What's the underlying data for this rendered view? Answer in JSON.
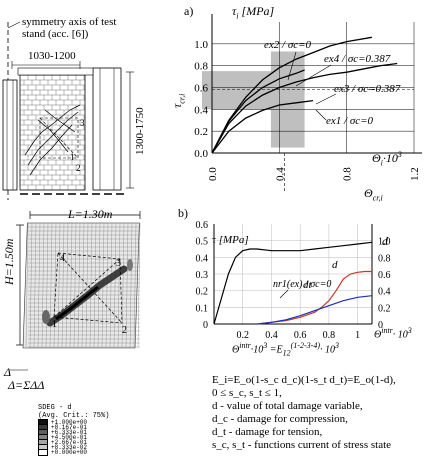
{
  "left_top": {
    "symmetry_label_1": "symmetry axis of test",
    "symmetry_label_2": "stand (acc. [6])",
    "width_dim": "1030-1200",
    "height_dim": "1300-1750",
    "crack_labels": [
      "1",
      "2",
      "3"
    ]
  },
  "left_bottom": {
    "length_label": "L=1.30m",
    "height_label": "H=1.50m",
    "node_labels": [
      "1",
      "2",
      "3",
      "4"
    ],
    "delta_label": "Δ",
    "delta_sum": "Δ=ΣΔΔ",
    "legend": {
      "title": "SDEG - d",
      "subtitle": "(Avg. Crit.: 75%)",
      "values": [
        "+1.000e+00",
        "+8.167e-01",
        "+6.333e-01",
        "+4.500e-01",
        "+2.667e-01",
        "+8.333e-02",
        "+0.000e+00"
      ],
      "colors": [
        "#111111",
        "#3a3a3a",
        "#5e5e5e",
        "#828282",
        "#a6a6a6",
        "#cacaca",
        "#ffffff"
      ]
    }
  },
  "chart_a": {
    "panel_label": "a)",
    "y_label": "τ",
    "y_subscript": "i",
    "y_unit": "[MPa]",
    "tau_cr": "τ",
    "tau_cr_sub": "cr,i",
    "x_label": "Θ",
    "x_subscript": "i",
    "x_unit": "·10",
    "x_power": "3",
    "theta_cr": "Θ",
    "theta_cr_sub": "cr,i"
  },
  "chart_b": {
    "panel_label": "b)",
    "y_label": "τ",
    "y_unit": "[MPa]",
    "y2_label": "d",
    "x_label_line1": "Θ",
    "x_label_line1_sup": "intr",
    "x_label_line1_rest": "· 10",
    "x_label_line1_power": "3",
    "x_label_line2": "Θ",
    "x_label_line2_sup": "intr",
    "x_label_line2_rest": "·10",
    "x_label_line2_power": "3",
    "x_label_line2_eq": "=E",
    "x_label_line2_e_sub": "12",
    "x_label_line2_e_sup": "(1-2-3-4)",
    "x_label_line2_tail": "· 10",
    "x_label_line2_tail_power": "3"
  },
  "formula": {
    "line1": "E_i=E_o(1-s_c d_c)(1-s_t d_t)=E_o(1-d),",
    "line2": "0 ≤ s_c, s_t ≤ 1,",
    "line3": "d - value of total damage variable,",
    "line4": "d_c - damage for compression,",
    "line5": "d_t - damage for tension,",
    "line6": "s_c, s_t - functions current of stress state"
  },
  "chart_data": [
    {
      "type": "line",
      "title": "",
      "xlabel": "Θi·10^3",
      "ylabel": "τi [MPa]",
      "xlim": [
        0,
        1.2
      ],
      "ylim": [
        0,
        1.2
      ],
      "x_ticks": [
        "0.0",
        "0.4",
        "0.8",
        "1.2"
      ],
      "y_ticks": [
        "0.0",
        "0.2",
        "0.4",
        "0.6",
        "0.8",
        "1.0"
      ],
      "grid": true,
      "series": [
        {
          "name": "ex4 / σc=0.387",
          "x": [
            0.0,
            0.1,
            0.2,
            0.3,
            0.4,
            0.5,
            0.6,
            0.7,
            0.8,
            0.95
          ],
          "values": [
            0.0,
            0.3,
            0.51,
            0.67,
            0.78,
            0.86,
            0.92,
            0.98,
            1.02,
            1.06
          ]
        },
        {
          "name": "ex2 / σc=0",
          "x": [
            0.0,
            0.1,
            0.2,
            0.3,
            0.4,
            0.5,
            0.55
          ],
          "values": [
            0.0,
            0.29,
            0.48,
            0.6,
            0.68,
            0.73,
            0.76
          ]
        },
        {
          "name": "ex3 / σc=0.387",
          "x": [
            0.0,
            0.1,
            0.2,
            0.3,
            0.4,
            0.5,
            0.6,
            0.7,
            0.8,
            1.0,
            1.1
          ],
          "values": [
            0.0,
            0.27,
            0.43,
            0.53,
            0.6,
            0.65,
            0.69,
            0.72,
            0.74,
            0.8,
            0.82
          ]
        },
        {
          "name": "ex1 / σc=0",
          "x": [
            0.0,
            0.1,
            0.2,
            0.3,
            0.4,
            0.5,
            0.6
          ],
          "values": [
            0.0,
            0.2,
            0.32,
            0.39,
            0.44,
            0.46,
            0.48
          ]
        }
      ],
      "bands": {
        "tau_cr_range": [
          0.4,
          0.75
        ],
        "theta_cr_range": [
          0.35,
          0.55
        ]
      },
      "reference_lines": {
        "tau_cr": 0.58,
        "theta_cr": 0.43
      }
    },
    {
      "type": "line",
      "title": "",
      "xlabel": "Θintr·10^3",
      "ylabel": "τ [MPa]",
      "y2label": "d",
      "xlim": [
        0,
        1.1
      ],
      "ylim": [
        0,
        0.6
      ],
      "y2lim": [
        0,
        1.2
      ],
      "x_ticks": [
        "0.2",
        "0.4",
        "0.6",
        "0.8",
        "1"
      ],
      "y_ticks": [
        "0",
        "0.1",
        "0.2",
        "0.3",
        "0.4",
        "0.5",
        "0.6"
      ],
      "y2_ticks": [
        "0",
        "0.2",
        "0.4",
        "0.6",
        "0.8",
        "1.0"
      ],
      "grid": true,
      "series": [
        {
          "name": "nr1(ex) / σc=0",
          "axis": "left",
          "x": [
            0.0,
            0.1,
            0.15,
            0.2,
            0.25,
            0.3,
            0.4,
            0.5,
            0.6,
            0.7,
            0.8,
            0.9,
            1.0,
            1.1
          ],
          "values": [
            0.0,
            0.3,
            0.4,
            0.44,
            0.45,
            0.45,
            0.44,
            0.44,
            0.44,
            0.45,
            0.46,
            0.47,
            0.48,
            0.49
          ]
        },
        {
          "name": "d",
          "axis": "right",
          "x": [
            0.3,
            0.4,
            0.5,
            0.6,
            0.7,
            0.75,
            0.8,
            0.85,
            0.9,
            0.95,
            1.0,
            1.05,
            1.1
          ],
          "values": [
            0.0,
            0.02,
            0.04,
            0.08,
            0.14,
            0.2,
            0.28,
            0.4,
            0.54,
            0.6,
            0.62,
            0.63,
            0.63
          ]
        },
        {
          "name": "dt",
          "axis": "right",
          "x": [
            0.3,
            0.4,
            0.5,
            0.6,
            0.7,
            0.8,
            0.9,
            1.0,
            1.1
          ],
          "values": [
            0.0,
            0.02,
            0.05,
            0.1,
            0.16,
            0.22,
            0.28,
            0.32,
            0.34
          ]
        }
      ]
    }
  ]
}
